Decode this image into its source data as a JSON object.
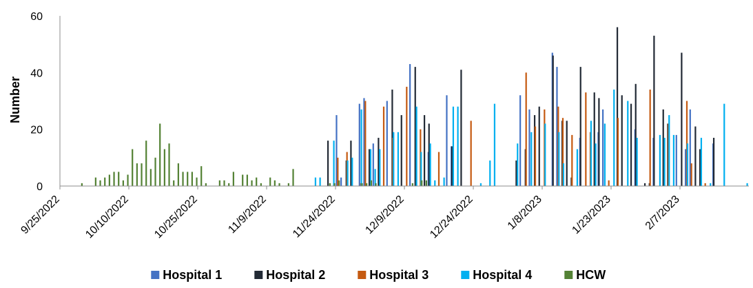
{
  "chart_data": {
    "type": "bar",
    "title": "",
    "xlabel": "",
    "ylabel": "Number",
    "ylim": [
      0,
      60
    ],
    "yticks": [
      0,
      20,
      40,
      60
    ],
    "grid": false,
    "legend_position": "bottom",
    "x_tick_labels": [
      "9/25/2022",
      "10/10/2022",
      "10/25/2022",
      "11/9/2022",
      "11/24/2022",
      "12/9/2022",
      "12/24/2022",
      "1/8/2023",
      "1/23/2023",
      "2/7/2023"
    ],
    "x_start_date": "9/25/2022",
    "x_end_date": "2/21/2023",
    "series": [
      {
        "name": "Hospital 1",
        "color": "#4472C4",
        "points": [
          [
            "11/24/2022",
            25
          ],
          [
            "11/25/2022",
            3
          ],
          [
            "11/29/2022",
            29
          ],
          [
            "11/30/2022",
            31
          ],
          [
            "12/2/2022",
            15
          ],
          [
            "12/5/2022",
            30
          ],
          [
            "12/10/2022",
            43
          ],
          [
            "12/14/2022",
            12
          ],
          [
            "12/18/2022",
            32
          ],
          [
            "12/19/2022",
            14
          ],
          [
            "1/3/2023",
            32
          ],
          [
            "1/5/2023",
            27
          ],
          [
            "1/10/2023",
            47
          ],
          [
            "1/11/2023",
            42
          ],
          [
            "1/16/2023",
            17
          ],
          [
            "1/20/2023",
            19
          ],
          [
            "1/21/2023",
            27
          ],
          [
            "1/28/2023",
            20
          ],
          [
            "2/1/2023",
            17
          ],
          [
            "2/6/2023",
            18
          ],
          [
            "2/8/2023",
            13
          ],
          [
            "2/9/2023",
            27
          ],
          [
            "2/14/2023",
            15
          ]
        ]
      },
      {
        "name": "Hospital 2",
        "color": "#222A35",
        "points": [
          [
            "11/22/2022",
            16
          ],
          [
            "11/26/2022",
            9
          ],
          [
            "11/27/2022",
            16
          ],
          [
            "12/1/2022",
            13
          ],
          [
            "12/3/2022",
            17
          ],
          [
            "12/6/2022",
            34
          ],
          [
            "12/8/2022",
            25
          ],
          [
            "12/11/2022",
            42
          ],
          [
            "12/13/2022",
            25
          ],
          [
            "12/14/2022",
            22
          ],
          [
            "12/19/2022",
            14
          ],
          [
            "12/21/2022",
            41
          ],
          [
            "1/2/2023",
            9
          ],
          [
            "1/4/2023",
            13
          ],
          [
            "1/6/2023",
            25
          ],
          [
            "1/7/2023",
            28
          ],
          [
            "1/10/2023",
            46
          ],
          [
            "1/12/2023",
            23
          ],
          [
            "1/13/2023",
            23
          ],
          [
            "1/14/2023",
            3
          ],
          [
            "1/16/2023",
            42
          ],
          [
            "1/19/2023",
            33
          ],
          [
            "1/20/2023",
            31
          ],
          [
            "1/24/2023",
            56
          ],
          [
            "1/25/2023",
            32
          ],
          [
            "1/27/2023",
            29
          ],
          [
            "1/28/2023",
            36
          ],
          [
            "1/30/2023",
            1
          ],
          [
            "1/31/2023",
            1
          ],
          [
            "2/1/2023",
            53
          ],
          [
            "2/3/2023",
            27
          ],
          [
            "2/4/2023",
            22
          ],
          [
            "2/7/2023",
            47
          ],
          [
            "2/10/2023",
            21
          ],
          [
            "2/11/2023",
            13
          ],
          [
            "2/14/2023",
            17
          ]
        ]
      },
      {
        "name": "Hospital 3",
        "color": "#C55A11",
        "points": [
          [
            "11/24/2022",
            10
          ],
          [
            "11/26/2022",
            12
          ],
          [
            "11/29/2022",
            1
          ],
          [
            "11/30/2022",
            30
          ],
          [
            "12/4/2022",
            28
          ],
          [
            "12/6/2022",
            17
          ],
          [
            "12/9/2022",
            35
          ],
          [
            "12/12/2022",
            20
          ],
          [
            "12/16/2022",
            12
          ],
          [
            "12/23/2022",
            23
          ],
          [
            "1/4/2023",
            40
          ],
          [
            "1/6/2023",
            21
          ],
          [
            "1/8/2023",
            27
          ],
          [
            "1/11/2023",
            28
          ],
          [
            "1/12/2023",
            24
          ],
          [
            "1/14/2023",
            18
          ],
          [
            "1/17/2023",
            33
          ],
          [
            "1/18/2023",
            19
          ],
          [
            "1/22/2023",
            2
          ],
          [
            "1/24/2023",
            24
          ],
          [
            "1/31/2023",
            34
          ],
          [
            "2/4/2023",
            22
          ],
          [
            "2/8/2023",
            30
          ],
          [
            "2/9/2023",
            8
          ],
          [
            "2/12/2023",
            1
          ]
        ]
      },
      {
        "name": "Hospital 4",
        "color": "#00B0F0",
        "points": [
          [
            "11/19/2022",
            3
          ],
          [
            "11/20/2022",
            3
          ],
          [
            "11/23/2022",
            16
          ],
          [
            "11/26/2022",
            9
          ],
          [
            "11/27/2022",
            10
          ],
          [
            "11/29/2022",
            27
          ],
          [
            "12/1/2022",
            13
          ],
          [
            "12/2/2022",
            6
          ],
          [
            "12/3/2022",
            13
          ],
          [
            "12/6/2022",
            19
          ],
          [
            "12/7/2022",
            19
          ],
          [
            "12/11/2022",
            28
          ],
          [
            "12/12/2022",
            12
          ],
          [
            "12/14/2022",
            15
          ],
          [
            "12/15/2022",
            2
          ],
          [
            "12/17/2022",
            3
          ],
          [
            "12/19/2022",
            28
          ],
          [
            "12/20/2022",
            28
          ],
          [
            "12/25/2022",
            1
          ],
          [
            "12/27/2022",
            9
          ],
          [
            "12/28/2022",
            29
          ],
          [
            "1/2/2023",
            15
          ],
          [
            "1/5/2023",
            19
          ],
          [
            "1/8/2023",
            22
          ],
          [
            "1/11/2023",
            19
          ],
          [
            "1/12/2023",
            8
          ],
          [
            "1/15/2023",
            13
          ],
          [
            "1/18/2023",
            23
          ],
          [
            "1/19/2023",
            15
          ],
          [
            "1/21/2023",
            22
          ],
          [
            "1/23/2023",
            34
          ],
          [
            "1/26/2023",
            30
          ],
          [
            "1/28/2023",
            17
          ],
          [
            "2/2/2023",
            18
          ],
          [
            "2/3/2023",
            17
          ],
          [
            "2/4/2023",
            25
          ],
          [
            "2/5/2023",
            18
          ],
          [
            "2/8/2023",
            15
          ],
          [
            "2/11/2023",
            17
          ],
          [
            "2/13/2023",
            1
          ],
          [
            "2/16/2023",
            29
          ],
          [
            "2/21/2023",
            1
          ]
        ]
      },
      {
        "name": "HCW",
        "color": "#548235",
        "points": [
          [
            "9/29/2022",
            1
          ],
          [
            "10/2/2022",
            3
          ],
          [
            "10/3/2022",
            2
          ],
          [
            "10/4/2022",
            3
          ],
          [
            "10/5/2022",
            4
          ],
          [
            "10/6/2022",
            5
          ],
          [
            "10/7/2022",
            5
          ],
          [
            "10/8/2022",
            2
          ],
          [
            "10/9/2022",
            4
          ],
          [
            "10/10/2022",
            13
          ],
          [
            "10/11/2022",
            8
          ],
          [
            "10/12/2022",
            8
          ],
          [
            "10/13/2022",
            16
          ],
          [
            "10/14/2022",
            6
          ],
          [
            "10/15/2022",
            10
          ],
          [
            "10/16/2022",
            22
          ],
          [
            "10/17/2022",
            13
          ],
          [
            "10/18/2022",
            15
          ],
          [
            "10/19/2022",
            2
          ],
          [
            "10/20/2022",
            8
          ],
          [
            "10/21/2022",
            5
          ],
          [
            "10/22/2022",
            5
          ],
          [
            "10/23/2022",
            5
          ],
          [
            "10/24/2022",
            3
          ],
          [
            "10/25/2022",
            7
          ],
          [
            "10/26/2022",
            1
          ],
          [
            "10/29/2022",
            2
          ],
          [
            "10/30/2022",
            2
          ],
          [
            "10/31/2022",
            1
          ],
          [
            "11/1/2022",
            5
          ],
          [
            "11/3/2022",
            4
          ],
          [
            "11/4/2022",
            4
          ],
          [
            "11/5/2022",
            2
          ],
          [
            "11/6/2022",
            3
          ],
          [
            "11/7/2022",
            1
          ],
          [
            "11/9/2022",
            3
          ],
          [
            "11/10/2022",
            2
          ],
          [
            "11/11/2022",
            1
          ],
          [
            "11/13/2022",
            1
          ],
          [
            "11/14/2022",
            6
          ],
          [
            "11/22/2022",
            1
          ],
          [
            "11/23/2022",
            1
          ],
          [
            "11/24/2022",
            2
          ],
          [
            "11/29/2022",
            1
          ],
          [
            "11/30/2022",
            1
          ],
          [
            "12/1/2022",
            2
          ],
          [
            "12/2/2022",
            1
          ],
          [
            "12/10/2022",
            1
          ],
          [
            "12/12/2022",
            2
          ],
          [
            "12/13/2022",
            2
          ]
        ]
      }
    ]
  }
}
